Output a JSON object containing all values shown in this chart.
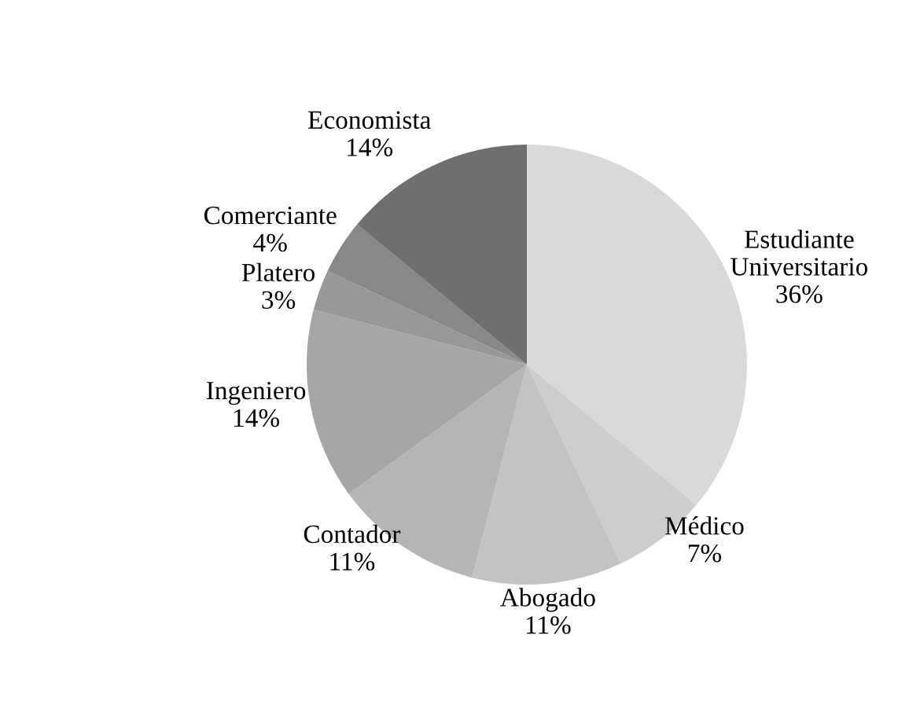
{
  "chart_data": {
    "type": "pie",
    "categories": [
      "Estudiante Universitario",
      "Médico",
      "Abogado",
      "Contador",
      "Ingeniero",
      "Platero",
      "Comerciante",
      "Economista"
    ],
    "values": [
      36,
      7,
      11,
      11,
      14,
      3,
      4,
      14
    ],
    "colors": [
      "#d9d9d9",
      "#cdcdcd",
      "#c3c3c3",
      "#b5b5b5",
      "#a6a6a6",
      "#989898",
      "#888888",
      "#6f6f6f"
    ],
    "value_labels": [
      "36%",
      "7%",
      "11%",
      "11%",
      "14%",
      "3%",
      "4%",
      "14%"
    ]
  }
}
